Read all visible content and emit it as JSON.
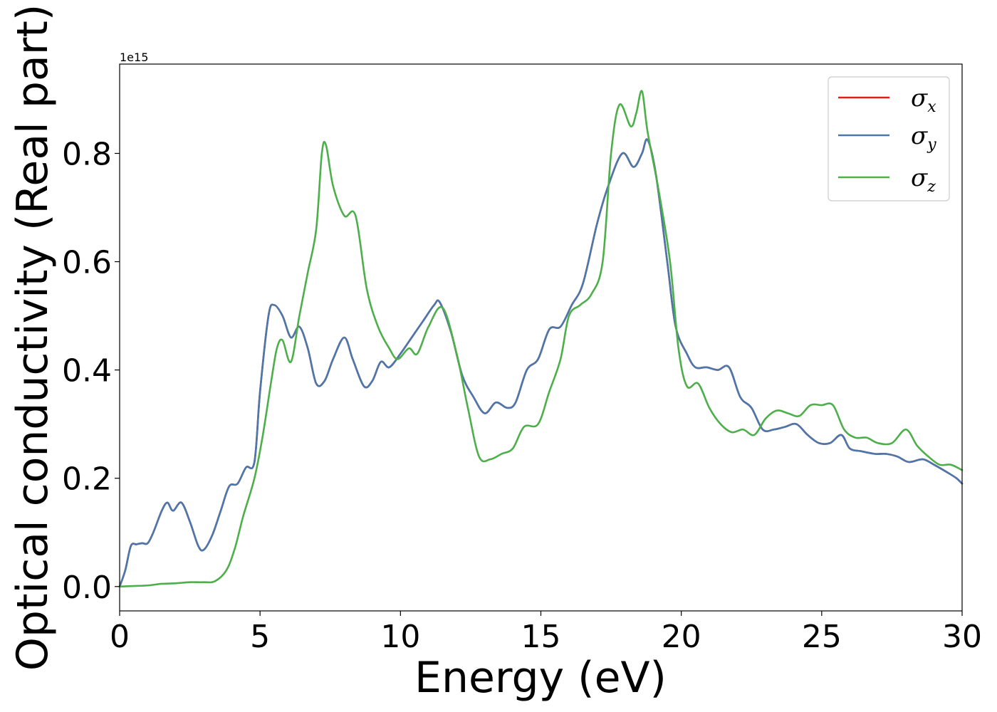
{
  "chart_data": {
    "type": "line",
    "xlabel": "Energy (eV)",
    "ylabel": "Optical conductivity (Real part)",
    "y_offset_label": "1e15",
    "xlim": [
      0,
      30
    ],
    "ylim": [
      -0.045,
      0.965
    ],
    "x_ticks": [
      0,
      5,
      10,
      15,
      20,
      25,
      30
    ],
    "x_tick_labels": [
      "0",
      "5",
      "10",
      "15",
      "20",
      "25",
      "30"
    ],
    "y_ticks": [
      0.0,
      0.2,
      0.4,
      0.6,
      0.8
    ],
    "y_tick_labels": [
      "0.0",
      "0.2",
      "0.4",
      "0.6",
      "0.8"
    ],
    "grid": false,
    "legend_position": "top-right",
    "series": [
      {
        "name": "σ",
        "subscript": "x",
        "color": "#e41a1c",
        "points": [
          [
            0,
            0
          ],
          [
            0.2,
            0.03
          ],
          [
            0.4,
            0.075
          ],
          [
            0.6,
            0.078
          ],
          [
            0.8,
            0.08
          ],
          [
            1.0,
            0.08
          ],
          [
            1.2,
            0.1
          ],
          [
            1.5,
            0.14
          ],
          [
            1.7,
            0.155
          ],
          [
            1.9,
            0.14
          ],
          [
            2.2,
            0.155
          ],
          [
            2.5,
            0.12
          ],
          [
            2.8,
            0.075
          ],
          [
            3.0,
            0.068
          ],
          [
            3.3,
            0.095
          ],
          [
            3.6,
            0.14
          ],
          [
            3.9,
            0.185
          ],
          [
            4.2,
            0.19
          ],
          [
            4.5,
            0.22
          ],
          [
            4.8,
            0.23
          ],
          [
            5.0,
            0.36
          ],
          [
            5.3,
            0.5
          ],
          [
            5.5,
            0.52
          ],
          [
            5.8,
            0.5
          ],
          [
            6.1,
            0.46
          ],
          [
            6.4,
            0.48
          ],
          [
            6.7,
            0.44
          ],
          [
            7.0,
            0.375
          ],
          [
            7.3,
            0.38
          ],
          [
            7.6,
            0.42
          ],
          [
            8.0,
            0.46
          ],
          [
            8.3,
            0.42
          ],
          [
            8.7,
            0.37
          ],
          [
            9.0,
            0.38
          ],
          [
            9.3,
            0.415
          ],
          [
            9.6,
            0.405
          ],
          [
            10.0,
            0.43
          ],
          [
            10.4,
            0.46
          ],
          [
            10.8,
            0.49
          ],
          [
            11.2,
            0.52
          ],
          [
            11.4,
            0.525
          ],
          [
            11.8,
            0.47
          ],
          [
            12.2,
            0.39
          ],
          [
            12.6,
            0.35
          ],
          [
            13.0,
            0.32
          ],
          [
            13.4,
            0.34
          ],
          [
            13.8,
            0.33
          ],
          [
            14.1,
            0.34
          ],
          [
            14.5,
            0.4
          ],
          [
            14.9,
            0.42
          ],
          [
            15.3,
            0.475
          ],
          [
            15.7,
            0.48
          ],
          [
            16.1,
            0.52
          ],
          [
            16.5,
            0.56
          ],
          [
            17.0,
            0.67
          ],
          [
            17.4,
            0.74
          ],
          [
            17.9,
            0.8
          ],
          [
            18.3,
            0.775
          ],
          [
            18.6,
            0.8
          ],
          [
            18.8,
            0.825
          ],
          [
            19.1,
            0.76
          ],
          [
            19.5,
            0.6
          ],
          [
            19.8,
            0.48
          ],
          [
            20.2,
            0.43
          ],
          [
            20.5,
            0.405
          ],
          [
            20.9,
            0.405
          ],
          [
            21.3,
            0.4
          ],
          [
            21.7,
            0.405
          ],
          [
            22.1,
            0.35
          ],
          [
            22.5,
            0.33
          ],
          [
            22.9,
            0.29
          ],
          [
            23.3,
            0.29
          ],
          [
            23.7,
            0.295
          ],
          [
            24.1,
            0.3
          ],
          [
            24.5,
            0.28
          ],
          [
            24.9,
            0.265
          ],
          [
            25.3,
            0.265
          ],
          [
            25.7,
            0.28
          ],
          [
            26.0,
            0.255
          ],
          [
            26.4,
            0.25
          ],
          [
            26.9,
            0.245
          ],
          [
            27.3,
            0.245
          ],
          [
            27.7,
            0.24
          ],
          [
            28.1,
            0.23
          ],
          [
            28.6,
            0.235
          ],
          [
            29.0,
            0.225
          ],
          [
            29.5,
            0.21
          ],
          [
            29.8,
            0.2
          ],
          [
            30.0,
            0.19
          ]
        ]
      },
      {
        "name": "σ",
        "subscript": "y",
        "color": "#4a78ac",
        "points": [
          [
            0,
            0
          ],
          [
            0.2,
            0.03
          ],
          [
            0.4,
            0.075
          ],
          [
            0.6,
            0.078
          ],
          [
            0.8,
            0.08
          ],
          [
            1.0,
            0.08
          ],
          [
            1.2,
            0.1
          ],
          [
            1.5,
            0.14
          ],
          [
            1.7,
            0.155
          ],
          [
            1.9,
            0.14
          ],
          [
            2.2,
            0.155
          ],
          [
            2.5,
            0.12
          ],
          [
            2.8,
            0.075
          ],
          [
            3.0,
            0.068
          ],
          [
            3.3,
            0.095
          ],
          [
            3.6,
            0.14
          ],
          [
            3.9,
            0.185
          ],
          [
            4.2,
            0.19
          ],
          [
            4.5,
            0.22
          ],
          [
            4.8,
            0.23
          ],
          [
            5.0,
            0.36
          ],
          [
            5.3,
            0.5
          ],
          [
            5.5,
            0.52
          ],
          [
            5.8,
            0.5
          ],
          [
            6.1,
            0.46
          ],
          [
            6.4,
            0.48
          ],
          [
            6.7,
            0.44
          ],
          [
            7.0,
            0.375
          ],
          [
            7.3,
            0.38
          ],
          [
            7.6,
            0.42
          ],
          [
            8.0,
            0.46
          ],
          [
            8.3,
            0.42
          ],
          [
            8.7,
            0.37
          ],
          [
            9.0,
            0.38
          ],
          [
            9.3,
            0.415
          ],
          [
            9.6,
            0.405
          ],
          [
            10.0,
            0.43
          ],
          [
            10.4,
            0.46
          ],
          [
            10.8,
            0.49
          ],
          [
            11.2,
            0.52
          ],
          [
            11.4,
            0.525
          ],
          [
            11.8,
            0.47
          ],
          [
            12.2,
            0.39
          ],
          [
            12.6,
            0.35
          ],
          [
            13.0,
            0.32
          ],
          [
            13.4,
            0.34
          ],
          [
            13.8,
            0.33
          ],
          [
            14.1,
            0.34
          ],
          [
            14.5,
            0.4
          ],
          [
            14.9,
            0.42
          ],
          [
            15.3,
            0.475
          ],
          [
            15.7,
            0.48
          ],
          [
            16.1,
            0.52
          ],
          [
            16.5,
            0.56
          ],
          [
            17.0,
            0.67
          ],
          [
            17.4,
            0.74
          ],
          [
            17.9,
            0.8
          ],
          [
            18.3,
            0.775
          ],
          [
            18.6,
            0.8
          ],
          [
            18.8,
            0.825
          ],
          [
            19.1,
            0.76
          ],
          [
            19.5,
            0.6
          ],
          [
            19.8,
            0.48
          ],
          [
            20.2,
            0.43
          ],
          [
            20.5,
            0.405
          ],
          [
            20.9,
            0.405
          ],
          [
            21.3,
            0.4
          ],
          [
            21.7,
            0.405
          ],
          [
            22.1,
            0.35
          ],
          [
            22.5,
            0.33
          ],
          [
            22.9,
            0.29
          ],
          [
            23.3,
            0.29
          ],
          [
            23.7,
            0.295
          ],
          [
            24.1,
            0.3
          ],
          [
            24.5,
            0.28
          ],
          [
            24.9,
            0.265
          ],
          [
            25.3,
            0.265
          ],
          [
            25.7,
            0.28
          ],
          [
            26.0,
            0.255
          ],
          [
            26.4,
            0.25
          ],
          [
            26.9,
            0.245
          ],
          [
            27.3,
            0.245
          ],
          [
            27.7,
            0.24
          ],
          [
            28.1,
            0.23
          ],
          [
            28.6,
            0.235
          ],
          [
            29.0,
            0.225
          ],
          [
            29.5,
            0.21
          ],
          [
            29.8,
            0.2
          ],
          [
            30.0,
            0.19
          ]
        ]
      },
      {
        "name": "σ",
        "subscript": "z",
        "color": "#4daf4a",
        "points": [
          [
            0,
            0
          ],
          [
            0.5,
            0.001
          ],
          [
            1.0,
            0.002
          ],
          [
            1.5,
            0.005
          ],
          [
            2.0,
            0.006
          ],
          [
            2.5,
            0.008
          ],
          [
            3.0,
            0.008
          ],
          [
            3.4,
            0.01
          ],
          [
            3.8,
            0.03
          ],
          [
            4.1,
            0.07
          ],
          [
            4.4,
            0.13
          ],
          [
            4.8,
            0.2
          ],
          [
            5.1,
            0.28
          ],
          [
            5.4,
            0.38
          ],
          [
            5.6,
            0.44
          ],
          [
            5.8,
            0.455
          ],
          [
            6.1,
            0.415
          ],
          [
            6.4,
            0.5
          ],
          [
            6.7,
            0.58
          ],
          [
            7.0,
            0.66
          ],
          [
            7.2,
            0.8
          ],
          [
            7.35,
            0.815
          ],
          [
            7.6,
            0.74
          ],
          [
            8.0,
            0.685
          ],
          [
            8.4,
            0.685
          ],
          [
            8.8,
            0.55
          ],
          [
            9.2,
            0.48
          ],
          [
            9.6,
            0.44
          ],
          [
            9.9,
            0.42
          ],
          [
            10.3,
            0.44
          ],
          [
            10.6,
            0.43
          ],
          [
            11.0,
            0.48
          ],
          [
            11.5,
            0.515
          ],
          [
            12.0,
            0.43
          ],
          [
            12.4,
            0.33
          ],
          [
            12.8,
            0.24
          ],
          [
            13.2,
            0.235
          ],
          [
            13.6,
            0.245
          ],
          [
            14.0,
            0.255
          ],
          [
            14.4,
            0.295
          ],
          [
            14.9,
            0.3
          ],
          [
            15.3,
            0.36
          ],
          [
            15.7,
            0.42
          ],
          [
            16.0,
            0.5
          ],
          [
            16.4,
            0.52
          ],
          [
            16.8,
            0.54
          ],
          [
            17.2,
            0.6
          ],
          [
            17.5,
            0.8
          ],
          [
            17.8,
            0.89
          ],
          [
            18.2,
            0.85
          ],
          [
            18.4,
            0.875
          ],
          [
            18.6,
            0.915
          ],
          [
            18.8,
            0.84
          ],
          [
            19.2,
            0.73
          ],
          [
            19.6,
            0.6
          ],
          [
            19.9,
            0.44
          ],
          [
            20.2,
            0.37
          ],
          [
            20.6,
            0.375
          ],
          [
            21.0,
            0.33
          ],
          [
            21.4,
            0.3
          ],
          [
            21.8,
            0.285
          ],
          [
            22.2,
            0.29
          ],
          [
            22.6,
            0.28
          ],
          [
            23.0,
            0.31
          ],
          [
            23.4,
            0.325
          ],
          [
            23.8,
            0.32
          ],
          [
            24.2,
            0.315
          ],
          [
            24.6,
            0.335
          ],
          [
            25.0,
            0.335
          ],
          [
            25.4,
            0.335
          ],
          [
            25.8,
            0.29
          ],
          [
            26.2,
            0.275
          ],
          [
            26.6,
            0.275
          ],
          [
            27.0,
            0.265
          ],
          [
            27.5,
            0.265
          ],
          [
            28.0,
            0.29
          ],
          [
            28.4,
            0.26
          ],
          [
            28.8,
            0.24
          ],
          [
            29.2,
            0.225
          ],
          [
            29.6,
            0.225
          ],
          [
            30.0,
            0.215
          ]
        ]
      }
    ]
  }
}
